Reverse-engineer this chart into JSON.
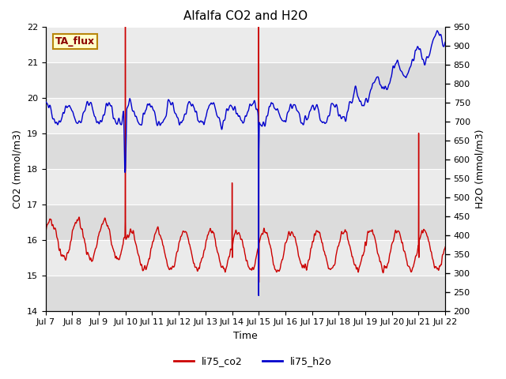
{
  "title": "Alfalfa CO2 and H2O",
  "xlabel": "Time",
  "ylabel_left": "CO2 (mmol/m3)",
  "ylabel_right": "H2O (mmol/m3)",
  "ylim_left": [
    14.0,
    22.0
  ],
  "ylim_right": [
    200,
    950
  ],
  "yticks_left": [
    14.0,
    15.0,
    16.0,
    17.0,
    18.0,
    19.0,
    20.0,
    21.0,
    22.0
  ],
  "yticks_right": [
    200,
    250,
    300,
    350,
    400,
    450,
    500,
    550,
    600,
    650,
    700,
    750,
    800,
    850,
    900,
    950
  ],
  "xtick_labels": [
    "Jul 7",
    "Jul 8",
    "Jul 9",
    "Jul 10",
    "Jul 11",
    "Jul 12",
    "Jul 13",
    "Jul 14",
    "Jul 15",
    "Jul 16",
    "Jul 17",
    "Jul 18",
    "Jul 19",
    "Jul 20",
    "Jul 21",
    "Jul 22"
  ],
  "annotation_text": "TA_flux",
  "annotation_color": "#8B0000",
  "annotation_bg": "#FFFFCC",
  "annotation_border": "#B8860B",
  "co2_color": "#CC0000",
  "h2o_color": "#0000CC",
  "plot_bg_dark": "#DCDCDC",
  "plot_bg_light": "#EBEBEB",
  "legend_co2": "li75_co2",
  "legend_h2o": "li75_h2o",
  "grid_color": "#FFFFFF",
  "line_width": 1.0,
  "title_fontsize": 11,
  "axis_fontsize": 9,
  "tick_fontsize": 8
}
